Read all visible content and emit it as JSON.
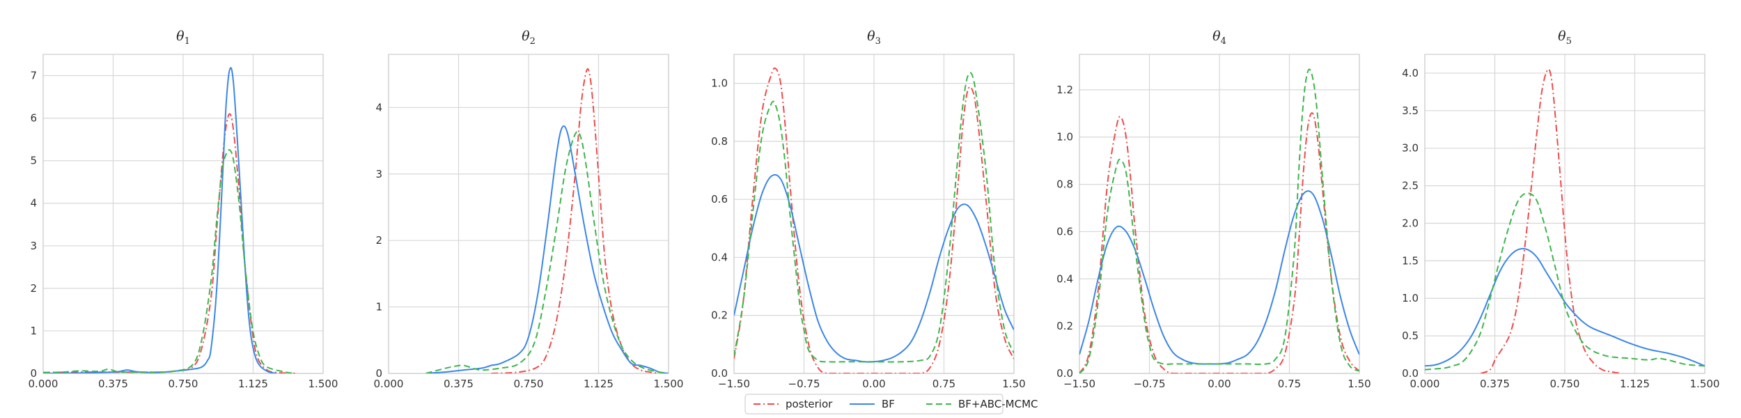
{
  "chart_data": [
    {
      "type": "line",
      "title": "θ1",
      "title_symbol": "θ",
      "title_subscript": "1",
      "xlim": [
        0.0,
        1.5
      ],
      "ylim": [
        0.0,
        7.5
      ],
      "xticks": [
        "0.000",
        "0.375",
        "0.750",
        "1.125",
        "1.500"
      ],
      "yticks": [
        "0",
        "1",
        "2",
        "3",
        "4",
        "5",
        "6",
        "7"
      ],
      "grid": true,
      "series": [
        {
          "name": "posterior",
          "x": [
            0.0,
            0.2,
            0.4,
            0.6,
            0.7,
            0.8,
            0.85,
            0.9,
            0.93,
            0.96,
            0.98,
            1.0,
            1.02,
            1.05,
            1.08,
            1.12,
            1.15,
            1.2,
            1.25,
            1.35
          ],
          "y": [
            0.02,
            0.03,
            0.03,
            0.03,
            0.05,
            0.15,
            0.6,
            1.8,
            3.4,
            5.0,
            5.8,
            6.1,
            5.7,
            4.3,
            2.6,
            1.0,
            0.35,
            0.08,
            0.02,
            0.0
          ]
        },
        {
          "name": "BF",
          "x": [
            0.0,
            0.2,
            0.3,
            0.4,
            0.45,
            0.5,
            0.6,
            0.7,
            0.8,
            0.85,
            0.88,
            0.9,
            0.93,
            0.96,
            0.98,
            1.0,
            1.02,
            1.05,
            1.08,
            1.1,
            1.12,
            1.15,
            1.2,
            1.25
          ],
          "y": [
            0.0,
            0.01,
            0.02,
            0.04,
            0.08,
            0.04,
            0.02,
            0.05,
            0.1,
            0.15,
            0.3,
            0.6,
            2.0,
            4.5,
            6.3,
            7.15,
            6.8,
            4.8,
            2.6,
            1.4,
            0.7,
            0.25,
            0.05,
            0.0
          ]
        },
        {
          "name": "BF+ABC-MCMC",
          "x": [
            0.0,
            0.1,
            0.2,
            0.3,
            0.35,
            0.4,
            0.5,
            0.6,
            0.7,
            0.8,
            0.85,
            0.9,
            0.93,
            0.96,
            0.98,
            1.0,
            1.02,
            1.05,
            1.08,
            1.12,
            1.16,
            1.2,
            1.3,
            1.35
          ],
          "y": [
            0.02,
            0.03,
            0.06,
            0.05,
            0.1,
            0.04,
            0.03,
            0.03,
            0.05,
            0.2,
            0.8,
            2.2,
            3.6,
            4.8,
            5.15,
            5.25,
            5.0,
            4.0,
            2.6,
            1.1,
            0.4,
            0.15,
            0.03,
            0.0
          ]
        }
      ]
    },
    {
      "type": "line",
      "title": "θ2",
      "title_symbol": "θ",
      "title_subscript": "2",
      "xlim": [
        0.0,
        1.5
      ],
      "ylim": [
        0.0,
        4.8
      ],
      "xticks": [
        "0.000",
        "0.375",
        "0.750",
        "1.125",
        "1.500"
      ],
      "yticks": [
        "0",
        "1",
        "2",
        "3",
        "4"
      ],
      "grid": true,
      "series": [
        {
          "name": "posterior",
          "x": [
            0.55,
            0.7,
            0.8,
            0.85,
            0.9,
            0.95,
            1.0,
            1.03,
            1.06,
            1.08,
            1.1,
            1.13,
            1.16,
            1.2,
            1.25,
            1.3,
            1.35,
            1.4,
            1.45
          ],
          "y": [
            0.0,
            0.02,
            0.1,
            0.3,
            0.8,
            1.7,
            3.0,
            4.0,
            4.55,
            4.45,
            3.9,
            2.8,
            1.7,
            0.9,
            0.4,
            0.15,
            0.05,
            0.02,
            0.0
          ]
        },
        {
          "name": "BF",
          "x": [
            0.2,
            0.3,
            0.4,
            0.5,
            0.55,
            0.6,
            0.7,
            0.75,
            0.8,
            0.85,
            0.9,
            0.93,
            0.96,
            1.0,
            1.05,
            1.1,
            1.15,
            1.2,
            1.25,
            1.3,
            1.35,
            1.4,
            1.45,
            1.5
          ],
          "y": [
            0.0,
            0.02,
            0.05,
            0.08,
            0.12,
            0.15,
            0.3,
            0.55,
            1.2,
            2.2,
            3.3,
            3.7,
            3.6,
            3.0,
            2.2,
            1.5,
            1.0,
            0.6,
            0.35,
            0.15,
            0.12,
            0.08,
            0.02,
            0.0
          ]
        },
        {
          "name": "BF+ABC-MCMC",
          "x": [
            0.2,
            0.28,
            0.34,
            0.4,
            0.45,
            0.5,
            0.6,
            0.7,
            0.78,
            0.84,
            0.9,
            0.95,
            1.0,
            1.03,
            1.06,
            1.1,
            1.15,
            1.2,
            1.25,
            1.3,
            1.35,
            1.4,
            1.45,
            1.5
          ],
          "y": [
            0.0,
            0.06,
            0.1,
            0.12,
            0.08,
            0.05,
            0.08,
            0.15,
            0.45,
            1.2,
            2.2,
            3.1,
            3.6,
            3.55,
            3.1,
            2.3,
            1.4,
            0.8,
            0.4,
            0.2,
            0.1,
            0.05,
            0.02,
            0.0
          ]
        }
      ]
    },
    {
      "type": "line",
      "title": "θ3",
      "title_symbol": "θ",
      "title_subscript": "3",
      "xlim": [
        -1.5,
        1.5
      ],
      "ylim": [
        0.0,
        1.1
      ],
      "xticks": [
        "−1.50",
        "−0.75",
        "0.00",
        "0.75",
        "1.50"
      ],
      "yticks": [
        "0.0",
        "0.2",
        "0.4",
        "0.6",
        "0.8",
        "1.0"
      ],
      "grid": true,
      "series": [
        {
          "name": "posterior",
          "x": [
            -1.5,
            -1.4,
            -1.3,
            -1.2,
            -1.1,
            -1.05,
            -1.0,
            -0.95,
            -0.9,
            -0.8,
            -0.7,
            -0.6,
            -0.5,
            -0.3,
            0.0,
            0.3,
            0.5,
            0.6,
            0.7,
            0.8,
            0.9,
            0.95,
            1.0,
            1.05,
            1.1,
            1.2,
            1.3,
            1.4,
            1.5
          ],
          "y": [
            0.05,
            0.25,
            0.6,
            0.9,
            1.03,
            1.05,
            1.0,
            0.85,
            0.65,
            0.3,
            0.1,
            0.02,
            0.0,
            0.0,
            0.0,
            0.0,
            0.0,
            0.02,
            0.1,
            0.3,
            0.65,
            0.85,
            0.97,
            0.98,
            0.9,
            0.6,
            0.28,
            0.12,
            0.05
          ]
        },
        {
          "name": "BF",
          "x": [
            -1.5,
            -1.4,
            -1.3,
            -1.2,
            -1.1,
            -1.0,
            -0.9,
            -0.8,
            -0.7,
            -0.6,
            -0.5,
            -0.4,
            -0.3,
            -0.2,
            -0.1,
            0.0,
            0.1,
            0.2,
            0.3,
            0.4,
            0.5,
            0.6,
            0.7,
            0.8,
            0.9,
            1.0,
            1.1,
            1.2,
            1.3,
            1.4,
            1.5
          ],
          "y": [
            0.2,
            0.35,
            0.5,
            0.62,
            0.68,
            0.67,
            0.58,
            0.44,
            0.3,
            0.18,
            0.11,
            0.07,
            0.05,
            0.045,
            0.04,
            0.04,
            0.045,
            0.055,
            0.075,
            0.11,
            0.18,
            0.28,
            0.4,
            0.5,
            0.57,
            0.58,
            0.53,
            0.44,
            0.33,
            0.22,
            0.15
          ]
        },
        {
          "name": "BF+ABC-MCMC",
          "x": [
            -1.5,
            -1.4,
            -1.3,
            -1.2,
            -1.1,
            -1.05,
            -1.0,
            -0.95,
            -0.9,
            -0.8,
            -0.75,
            -0.7,
            -0.6,
            -0.5,
            -0.3,
            0.0,
            0.3,
            0.5,
            0.6,
            0.7,
            0.8,
            0.9,
            0.95,
            1.0,
            1.05,
            1.1,
            1.2,
            1.3,
            1.4,
            1.5
          ],
          "y": [
            0.06,
            0.25,
            0.55,
            0.82,
            0.93,
            0.92,
            0.85,
            0.72,
            0.55,
            0.25,
            0.15,
            0.08,
            0.045,
            0.04,
            0.04,
            0.04,
            0.04,
            0.045,
            0.06,
            0.15,
            0.4,
            0.75,
            0.92,
            1.02,
            1.03,
            0.95,
            0.7,
            0.35,
            0.15,
            0.07
          ]
        }
      ]
    },
    {
      "type": "line",
      "title": "θ4",
      "title_symbol": "θ",
      "title_subscript": "4",
      "xlim": [
        -1.5,
        1.5
      ],
      "ylim": [
        0.0,
        1.35
      ],
      "xticks": [
        "−1.50",
        "−0.75",
        "0.00",
        "0.75",
        "1.50"
      ],
      "yticks": [
        "0.0",
        "0.2",
        "0.4",
        "0.6",
        "0.8",
        "1.0",
        "1.2"
      ],
      "grid": true,
      "series": [
        {
          "name": "posterior",
          "x": [
            -1.5,
            -1.4,
            -1.3,
            -1.2,
            -1.1,
            -1.05,
            -1.0,
            -0.95,
            -0.9,
            -0.8,
            -0.7,
            -0.6,
            -0.5,
            -0.3,
            0.0,
            0.3,
            0.5,
            0.6,
            0.7,
            0.8,
            0.85,
            0.9,
            0.95,
            1.0,
            1.05,
            1.1,
            1.2,
            1.3,
            1.4,
            1.5
          ],
          "y": [
            0.0,
            0.08,
            0.35,
            0.8,
            1.05,
            1.08,
            1.0,
            0.82,
            0.6,
            0.25,
            0.08,
            0.02,
            0.0,
            0.0,
            0.0,
            0.0,
            0.0,
            0.02,
            0.08,
            0.3,
            0.55,
            0.85,
            1.05,
            1.1,
            1.0,
            0.8,
            0.4,
            0.15,
            0.05,
            0.01
          ]
        },
        {
          "name": "BF",
          "x": [
            -1.5,
            -1.4,
            -1.3,
            -1.2,
            -1.1,
            -1.0,
            -0.9,
            -0.8,
            -0.7,
            -0.6,
            -0.5,
            -0.4,
            -0.3,
            -0.2,
            -0.1,
            0.0,
            0.1,
            0.2,
            0.3,
            0.4,
            0.5,
            0.6,
            0.7,
            0.8,
            0.9,
            1.0,
            1.1,
            1.2,
            1.3,
            1.4,
            1.5
          ],
          "y": [
            0.08,
            0.22,
            0.4,
            0.55,
            0.62,
            0.6,
            0.52,
            0.4,
            0.27,
            0.16,
            0.09,
            0.06,
            0.045,
            0.04,
            0.04,
            0.04,
            0.045,
            0.06,
            0.08,
            0.13,
            0.22,
            0.35,
            0.52,
            0.67,
            0.76,
            0.76,
            0.66,
            0.5,
            0.32,
            0.18,
            0.08
          ]
        },
        {
          "name": "BF+ABC-MCMC",
          "x": [
            -1.5,
            -1.4,
            -1.3,
            -1.2,
            -1.1,
            -1.05,
            -1.0,
            -0.95,
            -0.9,
            -0.8,
            -0.75,
            -0.7,
            -0.6,
            -0.5,
            -0.3,
            0.0,
            0.3,
            0.5,
            0.6,
            0.7,
            0.8,
            0.85,
            0.9,
            0.95,
            1.0,
            1.05,
            1.1,
            1.2,
            1.3,
            1.4,
            1.5
          ],
          "y": [
            0.0,
            0.06,
            0.3,
            0.68,
            0.88,
            0.9,
            0.85,
            0.7,
            0.52,
            0.22,
            0.12,
            0.06,
            0.04,
            0.04,
            0.04,
            0.04,
            0.04,
            0.04,
            0.06,
            0.15,
            0.5,
            0.85,
            1.15,
            1.28,
            1.25,
            1.1,
            0.85,
            0.4,
            0.12,
            0.03,
            0.01
          ]
        }
      ]
    },
    {
      "type": "line",
      "title": "θ5",
      "title_symbol": "θ",
      "title_subscript": "5",
      "xlim": [
        0.0,
        1.5
      ],
      "ylim": [
        0.0,
        4.25
      ],
      "xticks": [
        "0.000",
        "0.375",
        "0.750",
        "1.125",
        "1.500"
      ],
      "yticks": [
        "0.0",
        "0.5",
        "1.0",
        "1.5",
        "2.0",
        "2.5",
        "3.0",
        "3.5",
        "4.0"
      ],
      "grid": true,
      "series": [
        {
          "name": "posterior",
          "x": [
            0.3,
            0.35,
            0.38,
            0.42,
            0.46,
            0.5,
            0.55,
            0.6,
            0.63,
            0.66,
            0.68,
            0.7,
            0.73,
            0.76,
            0.8,
            0.85,
            0.9,
            0.95,
            1.0,
            1.05
          ],
          "y": [
            0.0,
            0.05,
            0.2,
            0.35,
            0.55,
            1.0,
            2.0,
            3.2,
            3.8,
            4.05,
            3.9,
            3.4,
            2.5,
            1.6,
            0.8,
            0.35,
            0.15,
            0.05,
            0.02,
            0.0
          ]
        },
        {
          "name": "BF",
          "x": [
            0.0,
            0.05,
            0.1,
            0.15,
            0.2,
            0.25,
            0.3,
            0.35,
            0.4,
            0.45,
            0.5,
            0.55,
            0.6,
            0.65,
            0.7,
            0.75,
            0.8,
            0.85,
            0.9,
            1.0,
            1.1,
            1.2,
            1.3,
            1.4,
            1.5
          ],
          "y": [
            0.1,
            0.11,
            0.15,
            0.22,
            0.33,
            0.5,
            0.75,
            1.05,
            1.35,
            1.55,
            1.65,
            1.65,
            1.55,
            1.35,
            1.15,
            0.95,
            0.8,
            0.68,
            0.6,
            0.5,
            0.4,
            0.32,
            0.27,
            0.2,
            0.1
          ]
        },
        {
          "name": "BF+ABC-MCMC",
          "x": [
            0.0,
            0.1,
            0.15,
            0.2,
            0.25,
            0.3,
            0.35,
            0.4,
            0.45,
            0.5,
            0.55,
            0.6,
            0.65,
            0.7,
            0.75,
            0.8,
            0.85,
            0.9,
            0.95,
            1.0,
            1.1,
            1.2,
            1.25,
            1.3,
            1.4,
            1.5
          ],
          "y": [
            0.05,
            0.07,
            0.1,
            0.15,
            0.3,
            0.55,
            1.0,
            1.5,
            1.95,
            2.3,
            2.4,
            2.3,
            1.9,
            1.4,
            0.9,
            0.6,
            0.4,
            0.3,
            0.25,
            0.22,
            0.2,
            0.18,
            0.2,
            0.18,
            0.12,
            0.1
          ]
        }
      ]
    }
  ],
  "legend": {
    "placement": "bottom-center",
    "entries": [
      {
        "label": "posterior",
        "color": "#ee4b4b",
        "style": "dashdot"
      },
      {
        "label": "BF",
        "color": "#3a86e8",
        "style": "solid"
      },
      {
        "label": "BF+ABC-MCMC",
        "color": "#3cb64b",
        "style": "dashed"
      }
    ]
  },
  "colors": {
    "posterior": "#ee4b4b",
    "BF": "#3a86e8",
    "BF+ABC-MCMC": "#3cb64b"
  }
}
